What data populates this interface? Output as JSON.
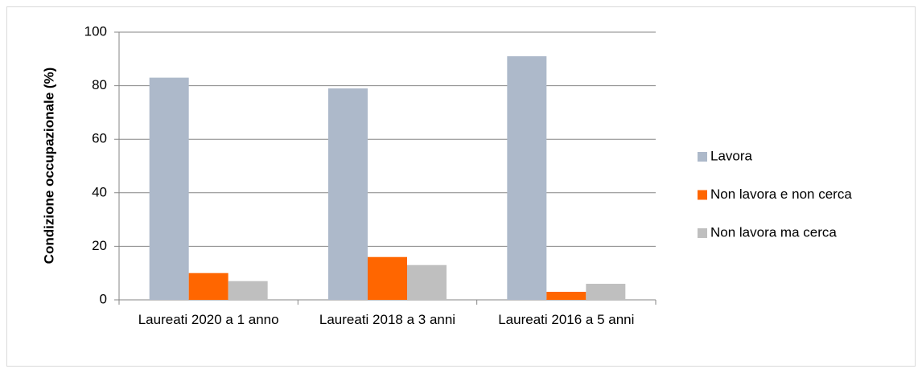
{
  "chart_data": {
    "type": "bar",
    "y_label": "Condizione occupazionale (%)",
    "categories": [
      "Laureati 2020 a 1 anno",
      "Laureati 2018 a 3 anni",
      "Laureati 2016 a 5 anni"
    ],
    "series": [
      {
        "name": "Lavora",
        "color": "#adb9ca",
        "values": [
          83,
          79,
          91
        ]
      },
      {
        "name": "Non lavora e non cerca",
        "color": "#ff6600",
        "values": [
          10,
          16,
          3
        ]
      },
      {
        "name": "Non lavora ma cerca",
        "color": "#bfbfbf",
        "values": [
          7,
          13,
          6
        ]
      }
    ],
    "ylim": [
      0,
      100
    ],
    "yticks": [
      0,
      20,
      40,
      60,
      80,
      100
    ],
    "grid": true,
    "legend": "right"
  }
}
